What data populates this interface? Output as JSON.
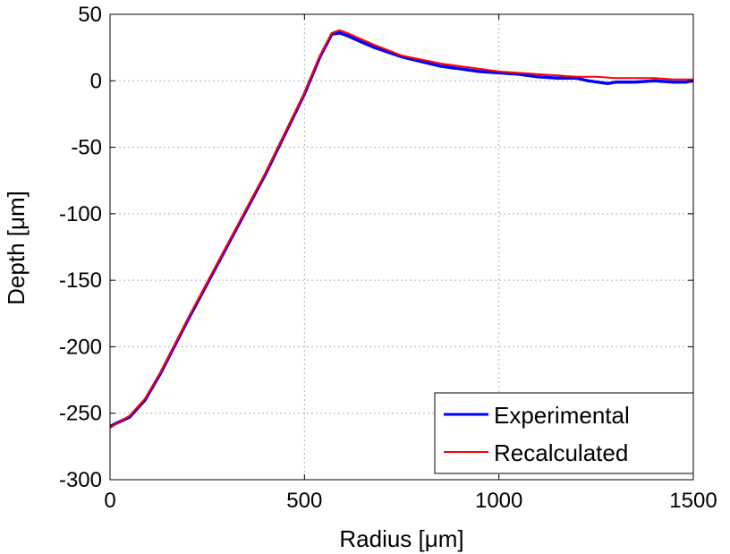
{
  "chart_data": {
    "type": "line",
    "title": "",
    "xlabel": "Radius [μm]",
    "ylabel": "Depth [μm]",
    "xlim": [
      0,
      1500
    ],
    "ylim": [
      -300,
      50
    ],
    "xticks": [
      0,
      500,
      1000,
      1500
    ],
    "xtick_labels": [
      "0",
      "500",
      "1000",
      "1500"
    ],
    "yticks": [
      50,
      0,
      -50,
      -100,
      -150,
      -200,
      -250,
      -300
    ],
    "ytick_labels": [
      "50",
      "0",
      "-50",
      "-100",
      "-150",
      "-200",
      "-250",
      "-300"
    ],
    "grid": true,
    "legend_position": "bottom-right",
    "series": [
      {
        "name": "Experimental",
        "color": "#0000ff",
        "x": [
          0,
          20,
          50,
          90,
          130,
          200,
          300,
          400,
          500,
          540,
          570,
          590,
          610,
          640,
          680,
          750,
          850,
          950,
          1000,
          1050,
          1100,
          1150,
          1200,
          1230,
          1280,
          1300,
          1350,
          1400,
          1450,
          1480,
          1500
        ],
        "y": [
          -260,
          -257,
          -253,
          -240,
          -220,
          -180,
          -125,
          -70,
          -10,
          18,
          35,
          36,
          34,
          30,
          25,
          18,
          11,
          7,
          6,
          5,
          3,
          2,
          2,
          0,
          -2,
          -1,
          -1,
          0,
          -1,
          -1,
          0
        ]
      },
      {
        "name": "Recalculated",
        "color": "#ff0000",
        "x": [
          0,
          20,
          50,
          90,
          130,
          200,
          300,
          400,
          500,
          540,
          570,
          590,
          610,
          640,
          680,
          750,
          850,
          950,
          1000,
          1050,
          1100,
          1150,
          1200,
          1250,
          1300,
          1350,
          1400,
          1450,
          1500
        ],
        "y": [
          -261,
          -257,
          -252,
          -239,
          -219,
          -179,
          -124,
          -69,
          -9,
          19,
          36,
          38,
          36,
          32,
          27,
          19,
          13,
          9,
          7,
          6,
          5,
          4,
          3,
          3,
          2,
          2,
          2,
          1,
          1
        ]
      }
    ]
  }
}
